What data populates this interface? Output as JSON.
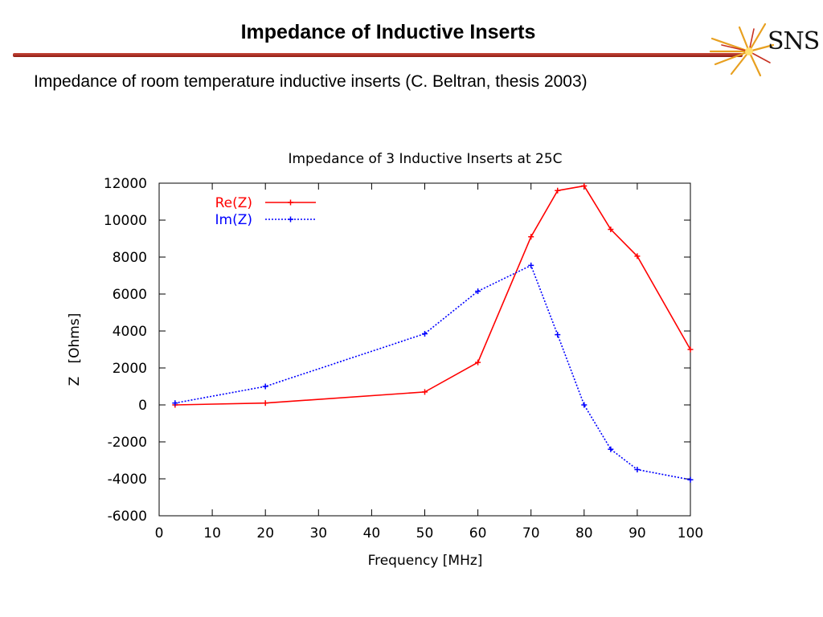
{
  "slide": {
    "title": "Impedance of Inductive Inserts",
    "subtitle": "Impedance of room temperature inductive inserts (C. Beltran, thesis 2003)",
    "logo_text": "SNS",
    "logo_icon": "sns-starburst-icon",
    "accent_color": "#a0281e"
  },
  "chart_data": {
    "type": "line",
    "title": "Impedance of 3 Inductive Inserts at 25C",
    "xlabel": "Frequency [MHz]",
    "ylabel": "Z   [Ohms]",
    "xlim": [
      0,
      100
    ],
    "ylim": [
      -6000,
      12000
    ],
    "xticks": [
      0,
      10,
      20,
      30,
      40,
      50,
      60,
      70,
      80,
      90,
      100
    ],
    "yticks": [
      -6000,
      -4000,
      -2000,
      0,
      2000,
      4000,
      6000,
      8000,
      10000,
      12000
    ],
    "grid": false,
    "legend_position": "top-left",
    "series": [
      {
        "name": "Re(Z)",
        "color": "#ff0000",
        "style": "solid",
        "marker": "plus",
        "x": [
          3,
          20,
          50,
          60,
          70,
          75,
          80,
          85,
          90,
          100
        ],
        "y": [
          0,
          100,
          700,
          2300,
          9100,
          11600,
          11850,
          9500,
          8050,
          3000
        ]
      },
      {
        "name": "Im(Z)",
        "color": "#0000ff",
        "style": "dotted",
        "marker": "plus",
        "x": [
          3,
          20,
          50,
          60,
          70,
          75,
          80,
          85,
          90,
          100
        ],
        "y": [
          100,
          1000,
          3850,
          6150,
          7550,
          3800,
          0,
          -2400,
          -3500,
          -4050
        ]
      }
    ]
  }
}
